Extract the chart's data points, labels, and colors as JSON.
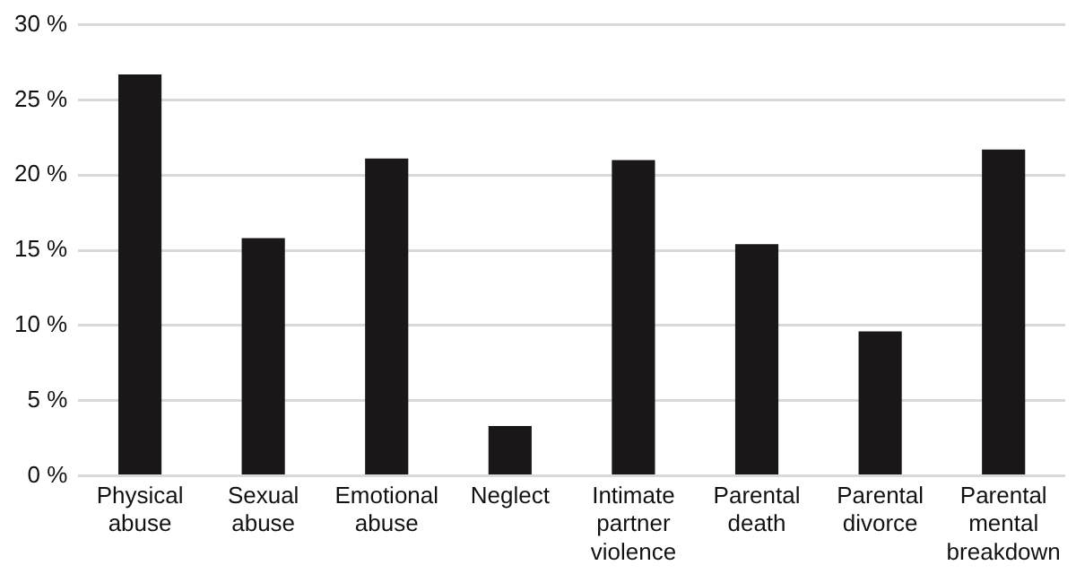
{
  "chart_data": {
    "type": "bar",
    "categories": [
      "Physical abuse",
      "Sexual abuse",
      "Emotional abuse",
      "Neglect",
      "Intimate partner violence",
      "Parental death",
      "Parental divorce",
      "Parental mental breakdown"
    ],
    "values": [
      26.7,
      15.8,
      21.1,
      3.3,
      21.0,
      15.4,
      9.6,
      21.7
    ],
    "color": "#1a1718",
    "ylim": [
      0,
      30
    ],
    "yticks": [
      {
        "value": 0,
        "label": "0 %"
      },
      {
        "value": 5,
        "label": "5 %"
      },
      {
        "value": 10,
        "label": "10 %"
      },
      {
        "value": 15,
        "label": "15 %"
      },
      {
        "value": 20,
        "label": "20 %"
      },
      {
        "value": 25,
        "label": "25 %"
      },
      {
        "value": 30,
        "label": "30 %"
      }
    ],
    "grid": "y",
    "legend": false
  }
}
